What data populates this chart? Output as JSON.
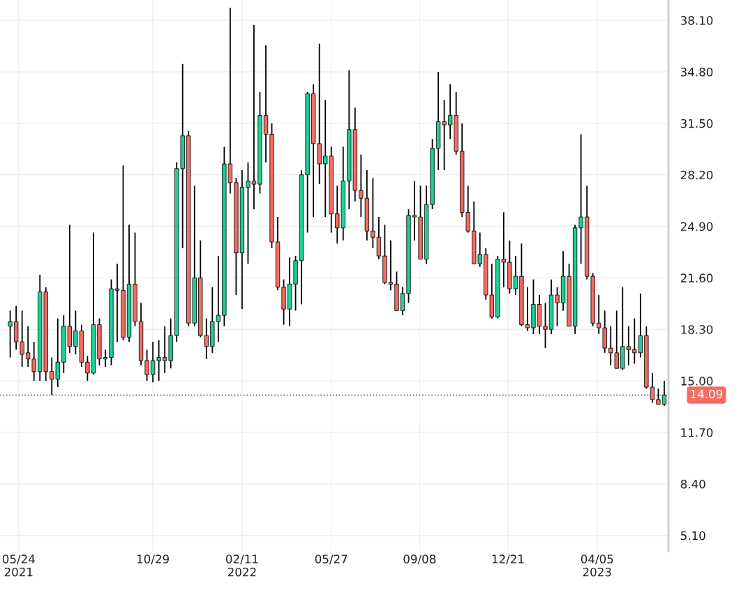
{
  "chart_data": {
    "type": "candlestick",
    "series": [
      {
        "color": "#1fcf97",
        "x": [
          "2021-05-14",
          "2021-06-18",
          "2021-07-09",
          "2021-07-16",
          "2021-07-30",
          "2021-08-20",
          "2021-09-03",
          "2021-09-10",
          "2021-10-01",
          "2021-10-29",
          "2021-11-05",
          "2021-11-19",
          "2021-11-26",
          "2021-12-03",
          "2021-12-17",
          "2022-01-07",
          "2022-01-14",
          "2022-01-21",
          "2022-02-11",
          "2022-02-18",
          "2022-03-04",
          "2022-04-08",
          "2022-04-15",
          "2022-04-22",
          "2022-04-29",
          "2022-05-20",
          "2022-06-10",
          "2022-06-17",
          "2022-08-19",
          "2022-08-26",
          "2022-09-16",
          "2022-09-23",
          "2022-09-30",
          "2022-10-14",
          "2022-11-18",
          "2022-12-09",
          "2022-12-30",
          "2023-01-20",
          "2023-02-10",
          "2023-02-24",
          "2023-03-10",
          "2023-03-17",
          "2023-05-05",
          "2023-05-26",
          "2023-06-23"
        ],
        "ohlc": [
          [
            18.5,
            19.5,
            16.5,
            18.8
          ],
          [
            15.6,
            21.8,
            15.0,
            20.7
          ],
          [
            15.1,
            19.0,
            14.6,
            16.2
          ],
          [
            16.2,
            19.2,
            15.5,
            18.5
          ],
          [
            17.2,
            19.5,
            16.7,
            18.2
          ],
          [
            15.5,
            24.5,
            15.4,
            18.6
          ],
          [
            16.4,
            17.0,
            15.9,
            16.5
          ],
          [
            16.5,
            21.5,
            16.0,
            20.9
          ],
          [
            17.8,
            25.0,
            17.5,
            21.2
          ],
          [
            15.4,
            17.5,
            14.9,
            16.3
          ],
          [
            16.3,
            17.6,
            15.0,
            16.5
          ],
          [
            16.3,
            19.0,
            15.8,
            17.9
          ],
          [
            17.9,
            29.0,
            17.5,
            28.6
          ],
          [
            28.6,
            35.3,
            23.5,
            30.7
          ],
          [
            18.7,
            27.5,
            18.5,
            21.6
          ],
          [
            17.2,
            21.0,
            16.8,
            18.8
          ],
          [
            18.8,
            23.0,
            17.5,
            19.2
          ],
          [
            19.2,
            30.0,
            18.5,
            28.9
          ],
          [
            23.2,
            28.5,
            19.6,
            27.4
          ],
          [
            27.4,
            29.0,
            22.5,
            27.8
          ],
          [
            27.6,
            33.5,
            27.0,
            32.0
          ],
          [
            19.6,
            22.9,
            18.5,
            21.2
          ],
          [
            21.2,
            23.0,
            19.5,
            22.7
          ],
          [
            22.7,
            28.5,
            19.9,
            28.2
          ],
          [
            28.2,
            33.5,
            24.5,
            33.4
          ],
          [
            28.9,
            33.0,
            25.5,
            29.4
          ],
          [
            24.8,
            30.0,
            24.0,
            27.8
          ],
          [
            27.8,
            34.9,
            26.0,
            31.1
          ],
          [
            19.5,
            21.0,
            19.2,
            20.6
          ],
          [
            20.6,
            26.0,
            20.0,
            25.6
          ],
          [
            22.8,
            27.5,
            22.5,
            26.3
          ],
          [
            26.3,
            30.5,
            26.0,
            29.9
          ],
          [
            29.9,
            34.8,
            28.5,
            31.6
          ],
          [
            31.4,
            34.0,
            30.5,
            32.0
          ],
          [
            22.5,
            24.5,
            22.3,
            23.1
          ],
          [
            19.1,
            23.0,
            19.0,
            22.8
          ],
          [
            20.9,
            23.0,
            20.5,
            21.7
          ],
          [
            18.4,
            21.5,
            18.0,
            19.9
          ],
          [
            18.3,
            21.5,
            18.0,
            20.5
          ],
          [
            20.0,
            23.3,
            19.5,
            21.7
          ],
          [
            18.5,
            25.0,
            18.0,
            24.8
          ],
          [
            24.8,
            30.8,
            22.5,
            25.5
          ],
          [
            15.8,
            21.0,
            15.7,
            17.2
          ],
          [
            16.8,
            20.6,
            16.5,
            17.9
          ],
          [
            13.5,
            15.0,
            13.4,
            14.09
          ]
        ]
      },
      {
        "color": "#f26d63",
        "x": [
          "2021-05-21",
          "2021-05-28",
          "2021-06-04",
          "2021-06-11",
          "2021-06-25",
          "2021-07-02",
          "2021-07-23",
          "2021-08-06",
          "2021-08-13",
          "2021-08-27",
          "2021-09-17",
          "2021-09-24",
          "2021-10-08",
          "2021-10-15",
          "2021-10-22",
          "2021-11-12",
          "2021-12-10",
          "2021-12-24",
          "2021-12-31",
          "2022-01-28",
          "2022-02-04",
          "2022-02-25",
          "2022-03-11",
          "2022-03-18",
          "2022-03-25",
          "2022-04-01",
          "2022-05-06",
          "2022-05-13",
          "2022-05-27",
          "2022-06-03",
          "2022-06-24",
          "2022-07-01",
          "2022-07-08",
          "2022-07-15",
          "2022-07-22",
          "2022-07-29",
          "2022-08-05",
          "2022-08-12",
          "2022-09-02",
          "2022-09-09",
          "2022-10-07",
          "2022-10-21",
          "2022-10-28",
          "2022-11-04",
          "2022-11-11",
          "2022-11-25",
          "2022-12-02",
          "2022-12-16",
          "2022-12-23",
          "2023-01-06",
          "2023-01-13",
          "2023-01-27",
          "2023-02-03",
          "2023-02-17",
          "2023-03-03",
          "2023-03-24",
          "2023-03-31",
          "2023-04-07",
          "2023-04-14",
          "2023-04-21",
          "2023-04-28",
          "2023-05-12",
          "2023-05-19",
          "2023-06-02",
          "2023-06-09",
          "2023-06-16"
        ],
        "ohlc": [
          [
            18.8,
            19.8,
            17.0,
            17.5
          ],
          [
            17.5,
            19.5,
            15.9,
            16.7
          ],
          [
            16.8,
            18.5,
            15.9,
            16.4
          ],
          [
            16.4,
            17.5,
            15.0,
            15.6
          ],
          [
            20.7,
            21.0,
            15.0,
            15.6
          ],
          [
            15.6,
            16.5,
            14.1,
            15.1
          ],
          [
            18.5,
            25.0,
            16.8,
            17.2
          ],
          [
            18.2,
            18.6,
            15.9,
            16.2
          ],
          [
            16.2,
            16.6,
            15.0,
            15.5
          ],
          [
            18.6,
            19.0,
            16.0,
            16.4
          ],
          [
            20.9,
            22.5,
            17.5,
            20.8
          ],
          [
            20.8,
            28.8,
            17.6,
            17.8
          ],
          [
            21.2,
            24.5,
            18.5,
            18.8
          ],
          [
            18.8,
            20.0,
            16.0,
            16.3
          ],
          [
            16.3,
            17.0,
            15.0,
            15.4
          ],
          [
            16.5,
            18.5,
            15.5,
            16.3
          ],
          [
            30.7,
            31.0,
            18.5,
            18.7
          ],
          [
            21.6,
            24.0,
            17.8,
            17.9
          ],
          [
            17.9,
            19.0,
            16.4,
            17.2
          ],
          [
            28.9,
            38.9,
            27.0,
            27.7
          ],
          [
            27.7,
            28.0,
            20.5,
            23.2
          ],
          [
            27.8,
            37.8,
            26.0,
            27.6
          ],
          [
            32.0,
            36.5,
            29.0,
            30.8
          ],
          [
            30.8,
            31.5,
            23.5,
            23.9
          ],
          [
            23.9,
            25.5,
            20.8,
            21.0
          ],
          [
            21.0,
            21.5,
            18.6,
            19.6
          ],
          [
            33.4,
            34.0,
            25.5,
            30.2
          ],
          [
            30.2,
            36.6,
            27.6,
            28.9
          ],
          [
            29.4,
            30.0,
            24.5,
            25.7
          ],
          [
            25.7,
            27.5,
            23.8,
            24.8
          ],
          [
            31.1,
            32.5,
            26.5,
            27.2
          ],
          [
            27.2,
            29.5,
            25.5,
            26.7
          ],
          [
            26.7,
            28.5,
            24.0,
            24.6
          ],
          [
            24.6,
            28.0,
            23.5,
            24.2
          ],
          [
            24.2,
            25.5,
            22.8,
            23.0
          ],
          [
            23.0,
            25.0,
            21.2,
            21.3
          ],
          [
            21.3,
            24.0,
            20.8,
            21.2
          ],
          [
            21.2,
            22.0,
            19.5,
            19.5
          ],
          [
            25.6,
            27.8,
            24.0,
            25.5
          ],
          [
            25.5,
            27.5,
            22.8,
            22.8
          ],
          [
            31.6,
            33.0,
            28.5,
            31.4
          ],
          [
            32.0,
            33.5,
            29.5,
            29.7
          ],
          [
            29.7,
            31.5,
            25.5,
            25.8
          ],
          [
            25.8,
            27.5,
            24.5,
            24.6
          ],
          [
            24.6,
            26.5,
            22.5,
            22.5
          ],
          [
            23.1,
            23.5,
            20.2,
            20.5
          ],
          [
            20.5,
            22.5,
            19.0,
            19.1
          ],
          [
            22.8,
            25.8,
            21.0,
            22.6
          ],
          [
            22.6,
            24.0,
            20.6,
            20.9
          ],
          [
            21.7,
            23.8,
            18.5,
            18.6
          ],
          [
            18.6,
            21.0,
            18.2,
            18.4
          ],
          [
            19.9,
            20.5,
            18.0,
            18.5
          ],
          [
            18.5,
            20.0,
            17.1,
            18.3
          ],
          [
            20.5,
            21.0,
            18.5,
            20.0
          ],
          [
            21.7,
            22.5,
            18.5,
            18.5
          ],
          [
            25.5,
            27.5,
            21.5,
            21.7
          ],
          [
            21.7,
            21.9,
            18.5,
            18.7
          ],
          [
            18.7,
            20.5,
            18.0,
            18.4
          ],
          [
            18.4,
            19.5,
            16.8,
            17.1
          ],
          [
            17.1,
            18.5,
            16.0,
            16.8
          ],
          [
            16.8,
            19.5,
            15.8,
            15.8
          ],
          [
            17.2,
            18.5,
            16.0,
            17.0
          ],
          [
            17.0,
            19.0,
            16.1,
            16.8
          ],
          [
            17.9,
            18.5,
            14.5,
            14.6
          ],
          [
            14.6,
            15.5,
            13.6,
            13.8
          ],
          [
            13.8,
            14.5,
            13.5,
            13.5
          ]
        ]
      }
    ],
    "xlim": [
      "2021-05-02",
      "2023-06-28"
    ],
    "xticks": [
      {
        "value": "2021-05-24",
        "label": "05/24\n2021"
      },
      {
        "value": "2021-10-29",
        "label": "10/29"
      },
      {
        "value": "2022-02-11",
        "label": "02/11\n2022"
      },
      {
        "value": "2022-05-27",
        "label": "05/27"
      },
      {
        "value": "2022-09-08",
        "label": "09/08"
      },
      {
        "value": "2022-12-21",
        "label": "12/21"
      },
      {
        "value": "2023-04-05",
        "label": "04/05\n2023"
      }
    ],
    "ylim": [
      4.1,
      39.4
    ],
    "yticks": [
      {
        "value": 5.1,
        "label": "5.10"
      },
      {
        "value": 8.4,
        "label": "8.40"
      },
      {
        "value": 11.7,
        "label": "11.70"
      },
      {
        "value": 15.0,
        "label": "15.00"
      },
      {
        "value": 18.3,
        "label": "18.30"
      },
      {
        "value": 21.6,
        "label": "21.60"
      },
      {
        "value": 24.9,
        "label": "24.90"
      },
      {
        "value": 28.2,
        "label": "28.20"
      },
      {
        "value": 31.5,
        "label": "31.50"
      },
      {
        "value": 34.8,
        "label": "34.80"
      },
      {
        "value": 38.1,
        "label": "38.10"
      }
    ],
    "grid": true,
    "ref_lines": [
      {
        "axis": "y",
        "value": 14.09,
        "label": "14.09",
        "color": "#444444",
        "line_style": "dotted"
      }
    ]
  }
}
